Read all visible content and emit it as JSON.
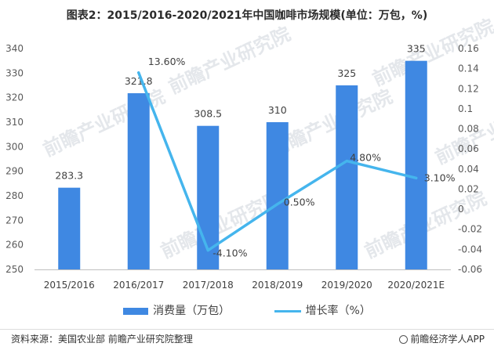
{
  "chart_data": {
    "type": "bar+line",
    "title": "图表2：2015/2016-2020/2021年中国咖啡市场规模(单位：万包，%)",
    "categories": [
      "2015/2016",
      "2016/2017",
      "2017/2018",
      "2018/2019",
      "2019/2020",
      "2020/2021E"
    ],
    "series": [
      {
        "name": "消费量（万包）",
        "type": "bar",
        "axis": "left",
        "values": [
          283.3,
          321.8,
          308.5,
          310,
          325,
          335
        ],
        "labels": [
          "283.3",
          "321.8",
          "308.5",
          "310",
          "325",
          "335"
        ],
        "color": "#3f88e2"
      },
      {
        "name": "增长率（%）",
        "type": "line",
        "axis": "right",
        "values": [
          null,
          0.136,
          -0.041,
          0.005,
          0.048,
          0.031
        ],
        "labels": [
          null,
          "13.60%",
          "-4.10%",
          "0.50%",
          "4.80%",
          "3.10%"
        ],
        "color": "#45b5ed"
      }
    ],
    "y_left": {
      "min": 250,
      "max": 340,
      "ticks": [
        "250",
        "260",
        "270",
        "280",
        "290",
        "300",
        "310",
        "320",
        "330",
        "340"
      ]
    },
    "y_right": {
      "min": -0.06,
      "max": 0.16,
      "ticks": [
        "-0.06",
        "-0.04",
        "-0.02",
        "0",
        "0.02",
        "0.04",
        "0.06",
        "0.08",
        "0.1",
        "0.12",
        "0.14",
        "0.16"
      ]
    },
    "grid": false,
    "legend_position": "bottom"
  },
  "watermark": "前瞻产业研究院",
  "footer": {
    "source": "资料来源：美国农业部 前瞻产业研究院整理",
    "brand": "前瞻经济学人APP"
  }
}
